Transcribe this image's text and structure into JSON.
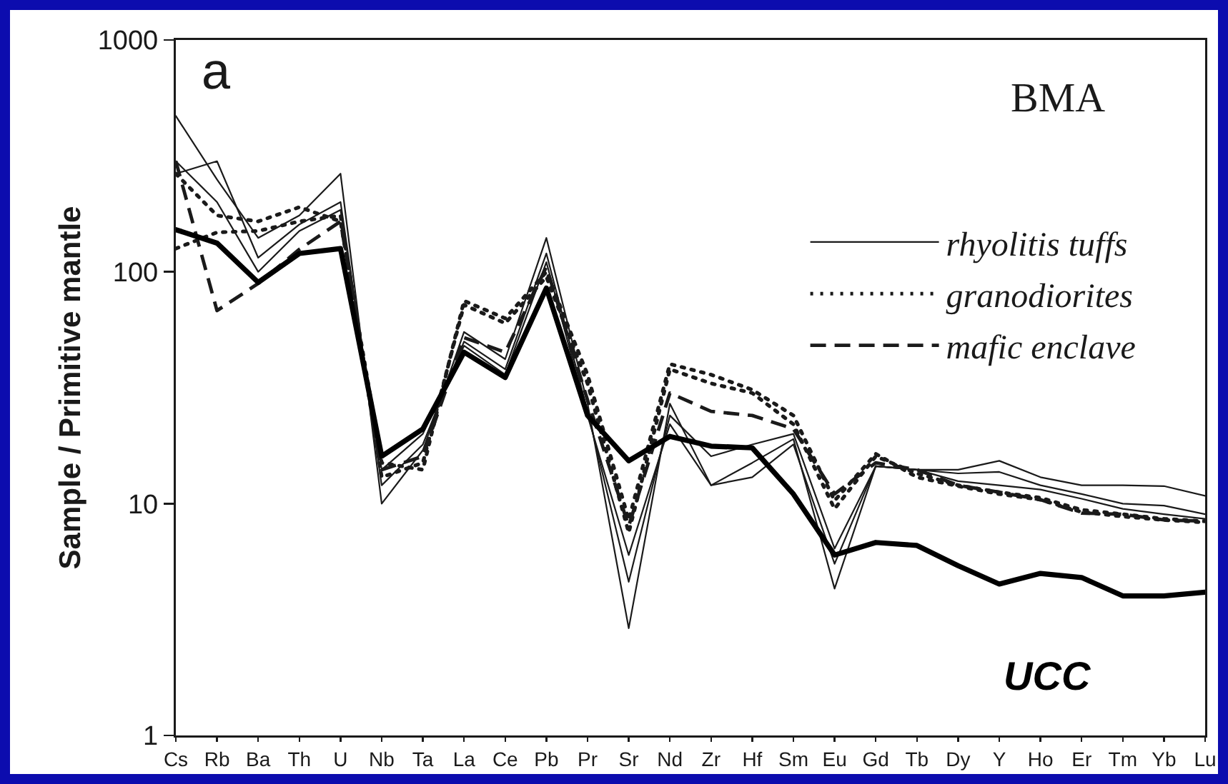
{
  "chart_data": {
    "type": "line",
    "title": "BMA",
    "ylabel": "Sample / Primitive mantle",
    "annotations": [
      "a",
      "UCC"
    ],
    "categories": [
      "Cs",
      "Rb",
      "Ba",
      "Th",
      "U",
      "Nb",
      "Ta",
      "La",
      "Ce",
      "Pb",
      "Pr",
      "Sr",
      "Nd",
      "Zr",
      "Hf",
      "Sm",
      "Eu",
      "Gd",
      "Tb",
      "Dy",
      "Y",
      "Ho",
      "Er",
      "Tm",
      "Yb",
      "Lu"
    ],
    "series": [
      {
        "name": "rhyolitis tuffs",
        "color": "#1a1a1a",
        "line_style": "solid",
        "values": [
          470,
          250,
          140,
          175,
          265,
          10,
          17,
          55,
          42,
          140,
          27,
          2.9,
          27,
          12,
          15,
          19,
          4.3,
          14.5,
          14,
          14,
          15.3,
          13,
          12,
          12,
          11.9,
          10.8
        ]
      },
      {
        "color": "#1a1a1a",
        "line_style": "solid",
        "values": [
          265,
          300,
          115,
          160,
          200,
          12,
          18,
          50,
          38,
          120,
          25,
          4.6,
          24,
          16,
          18,
          20,
          6.4,
          14.5,
          14,
          13.5,
          13.7,
          12,
          11,
          10,
          9.8,
          9.0
        ]
      },
      {
        "color": "#1a1a1a",
        "line_style": "solid",
        "values": [
          300,
          200,
          100,
          150,
          185,
          14,
          20,
          48,
          36,
          110,
          24,
          6,
          22,
          12,
          13,
          18,
          5.5,
          14.5,
          14,
          12.5,
          12,
          11.5,
          10.5,
          9.5,
          9.0,
          8.6
        ]
      },
      {
        "name": "granodiorites",
        "color": "#1a1a1a",
        "line_style": "dotted",
        "values": [
          265,
          175,
          165,
          190,
          165,
          15,
          14,
          75,
          63,
          100,
          36,
          8.5,
          40,
          36,
          31,
          24,
          10.3,
          16.4,
          13,
          11.9,
          11,
          10.4,
          9.2,
          8.8,
          8.5,
          8.3
        ]
      },
      {
        "color": "#1a1a1a",
        "line_style": "dotted",
        "values": [
          126,
          148,
          150,
          165,
          175,
          13,
          15,
          72,
          60,
          95,
          33,
          7.5,
          38,
          33,
          30,
          22,
          9.5,
          16,
          13.5,
          12,
          11.2,
          10.6,
          9.4,
          9.0,
          8.6,
          8.4
        ]
      },
      {
        "name": "mafic enclave",
        "color": "#1a1a1a",
        "line_style": "dashed",
        "values": [
          300,
          68,
          89,
          125,
          165,
          14,
          16,
          52,
          45,
          105,
          28,
          8,
          30,
          25,
          24,
          21,
          11,
          15,
          14,
          12,
          11.2,
          10.4,
          9.1,
          9.0,
          8.5,
          8.4
        ]
      },
      {
        "color": "#000000",
        "line_style": "solid",
        "values": [
          152,
          133,
          90,
          120,
          126,
          16,
          21,
          45,
          35,
          85,
          24,
          15.3,
          19.5,
          17.7,
          17.4,
          11,
          6.0,
          6.8,
          6.6,
          5.4,
          4.5,
          5.0,
          4.8,
          4.0,
          4.0,
          4.15
        ]
      }
    ],
    "ylim": [
      1,
      1000
    ],
    "yticks": [
      1,
      10,
      100,
      1000
    ],
    "log": true,
    "legend": "top right"
  }
}
